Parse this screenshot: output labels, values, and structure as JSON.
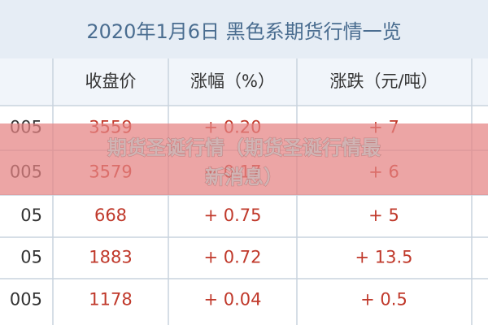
{
  "header": {
    "title": "2020年1月6日 黑色系期货行情一览"
  },
  "table": {
    "columns": [
      "收盘价",
      "涨幅（%）",
      "涨跌（元/吨）"
    ],
    "rows": [
      [
        "005",
        "3559",
        "+ 0.20",
        "+ 7"
      ],
      [
        "005",
        "3579",
        "+ 0.17",
        "+ 6"
      ],
      [
        "05",
        "668",
        "+ 0.75",
        "+ 5"
      ],
      [
        "05",
        "1883",
        "+ 0.72",
        "+ 13.5"
      ],
      [
        "005",
        "1178",
        "+ 0.04",
        "+ 0.5"
      ]
    ]
  },
  "banner": {
    "lines": [
      "期货圣诞行情（期货圣诞行情最",
      "新消息）"
    ]
  }
}
